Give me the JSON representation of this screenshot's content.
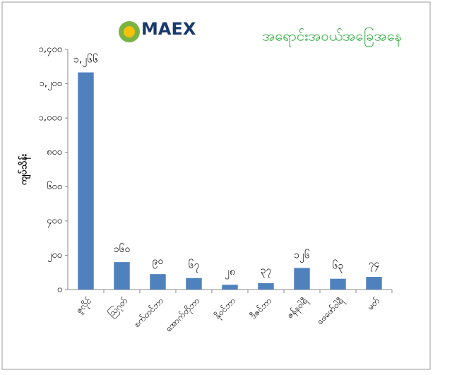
{
  "chart_data": {
    "type": "bar",
    "title": "အရောင်းအဝယ်အခြေအနေ",
    "logo": "MAEX",
    "y_label": "ကျပ်သိန်း",
    "categories": [
      "ဇူလိုင်",
      "ဩဂုတ်",
      "စက်တင်ဘာ",
      "အောက်တိုဘာ",
      "နိုဝင်ဘာ",
      "ဒီဇင်ဘာ",
      "ဇန်နဝါရီ",
      "ဖေဖော်ဝါရီ",
      "မတ်"
    ],
    "values": [
      1266,
      160,
      90,
      67,
      28,
      37,
      126,
      63,
      74
    ],
    "value_labels": [
      "၁,၂၆၆",
      "၁၆၀",
      "၉၀",
      "၆၇",
      "၂၈",
      "၃၇",
      "၁၂၆",
      "၆၃",
      "၇၄"
    ],
    "color": "#4f81bd",
    "ylim": [
      0,
      1400
    ],
    "yticks": [
      {
        "value": 0,
        "label": "၀"
      },
      {
        "value": 200,
        "label": "၂၀၀"
      },
      {
        "value": 400,
        "label": "၄၀၀"
      },
      {
        "value": 600,
        "label": "၆၀၀"
      },
      {
        "value": 800,
        "label": "၈၀၀"
      },
      {
        "value": 1000,
        "label": "၁,၀၀၀"
      },
      {
        "value": 1200,
        "label": "၁,၂၀၀"
      },
      {
        "value": 1400,
        "label": "၁,၄၀၀"
      }
    ],
    "grid": false
  }
}
